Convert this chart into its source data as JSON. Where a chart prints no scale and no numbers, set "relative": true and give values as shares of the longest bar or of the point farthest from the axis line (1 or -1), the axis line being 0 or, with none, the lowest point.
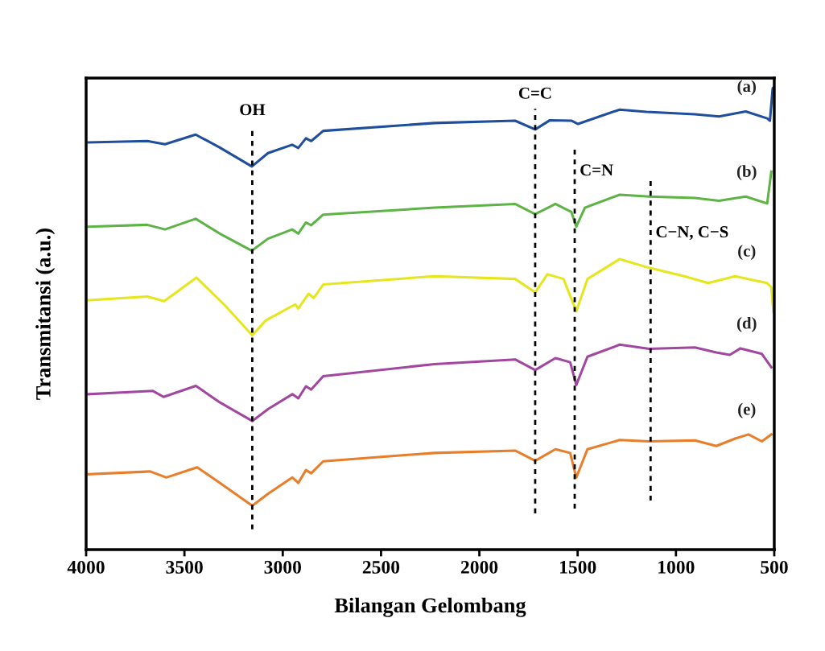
{
  "chart_data": {
    "type": "line",
    "relative": true,
    "xlabel": "Bilangan Gelombang",
    "ylabel": "Transmitansi (a.u.)",
    "xlim": [
      4000,
      500
    ],
    "xticks": [
      4000,
      3500,
      3000,
      2500,
      2000,
      1500,
      1000,
      500
    ],
    "grid": false,
    "legend": false,
    "marker": "none",
    "line_style": "solid",
    "tick_labels": "x",
    "series": [
      {
        "name": "(a)",
        "color": "#1f4e9c",
        "x": [
          3988,
          3689,
          3599,
          3443,
          3320,
          3157,
          3075,
          2952,
          2921,
          2882,
          2855,
          2794,
          2228,
          1818,
          1716,
          1641,
          1532,
          1498,
          1286,
          1150,
          904,
          781,
          645,
          536,
          522,
          508,
          500
        ],
        "values": [
          0.88,
          0.883,
          0.876,
          0.897,
          0.869,
          0.828,
          0.857,
          0.875,
          0.868,
          0.889,
          0.883,
          0.905,
          0.922,
          0.927,
          0.908,
          0.928,
          0.927,
          0.92,
          0.951,
          0.946,
          0.941,
          0.936,
          0.947,
          0.932,
          0.927,
          0.997,
          1.0
        ]
      },
      {
        "name": "(b)",
        "color": "#5db346",
        "x": [
          3988,
          3689,
          3599,
          3443,
          3320,
          3157,
          3075,
          2952,
          2921,
          2882,
          2855,
          2794,
          2228,
          1818,
          1716,
          1613,
          1532,
          1507,
          1463,
          1286,
          1136,
          904,
          781,
          645,
          536,
          515
        ],
        "values": [
          0.698,
          0.702,
          0.692,
          0.715,
          0.683,
          0.646,
          0.672,
          0.692,
          0.683,
          0.707,
          0.701,
          0.724,
          0.739,
          0.747,
          0.725,
          0.747,
          0.73,
          0.698,
          0.739,
          0.767,
          0.763,
          0.76,
          0.754,
          0.763,
          0.748,
          0.817
        ]
      },
      {
        "name": "(c)",
        "color": "#e6e61e",
        "x": [
          3988,
          3689,
          3603,
          3439,
          3292,
          3155,
          3087,
          2937,
          2921,
          2869,
          2842,
          2794,
          2228,
          1818,
          1716,
          1654,
          1572,
          1507,
          1450,
          1286,
          1136,
          958,
          836,
          699,
          536,
          515,
          504
        ],
        "values": [
          0.539,
          0.547,
          0.537,
          0.588,
          0.527,
          0.463,
          0.495,
          0.53,
          0.521,
          0.553,
          0.544,
          0.573,
          0.591,
          0.585,
          0.556,
          0.595,
          0.585,
          0.515,
          0.585,
          0.628,
          0.609,
          0.591,
          0.576,
          0.591,
          0.576,
          0.567,
          0.513
        ]
      },
      {
        "name": "(d)",
        "color": "#a2479f",
        "x": [
          3988,
          3660,
          3606,
          3442,
          3319,
          3155,
          3074,
          2951,
          2921,
          2882,
          2855,
          2794,
          2228,
          1818,
          1716,
          1613,
          1538,
          1507,
          1450,
          1286,
          1136,
          904,
          795,
          726,
          672,
          563,
          515
        ],
        "values": [
          0.336,
          0.343,
          0.33,
          0.354,
          0.318,
          0.278,
          0.304,
          0.336,
          0.327,
          0.353,
          0.346,
          0.375,
          0.401,
          0.411,
          0.388,
          0.414,
          0.405,
          0.356,
          0.417,
          0.443,
          0.434,
          0.437,
          0.426,
          0.421,
          0.435,
          0.423,
          0.394
        ]
      },
      {
        "name": "(e)",
        "color": "#e87d2a",
        "x": [
          3988,
          3674,
          3592,
          3435,
          3319,
          3155,
          3074,
          2951,
          2921,
          2882,
          2855,
          2794,
          2228,
          1818,
          1716,
          1613,
          1538,
          1507,
          1450,
          1286,
          1136,
          904,
          795,
          699,
          631,
          563,
          515
        ],
        "values": [
          0.163,
          0.169,
          0.156,
          0.178,
          0.144,
          0.095,
          0.121,
          0.156,
          0.144,
          0.172,
          0.165,
          0.191,
          0.209,
          0.214,
          0.192,
          0.217,
          0.209,
          0.156,
          0.217,
          0.237,
          0.234,
          0.236,
          0.224,
          0.24,
          0.249,
          0.234,
          0.249
        ]
      }
    ],
    "ref_lines": [
      {
        "axis": "x",
        "value": 3155,
        "label": "OH",
        "line_style": "dotted",
        "color": "#000000"
      },
      {
        "axis": "x",
        "value": 1716,
        "label": "C=C",
        "line_style": "dotted",
        "color": "#000000"
      },
      {
        "axis": "x",
        "value": 1515,
        "label": "C=N",
        "line_style": "dotted",
        "color": "#000000"
      },
      {
        "axis": "x",
        "value": 1129,
        "label": "C−N, C−S",
        "line_style": "dotted",
        "color": "#000000"
      }
    ]
  }
}
